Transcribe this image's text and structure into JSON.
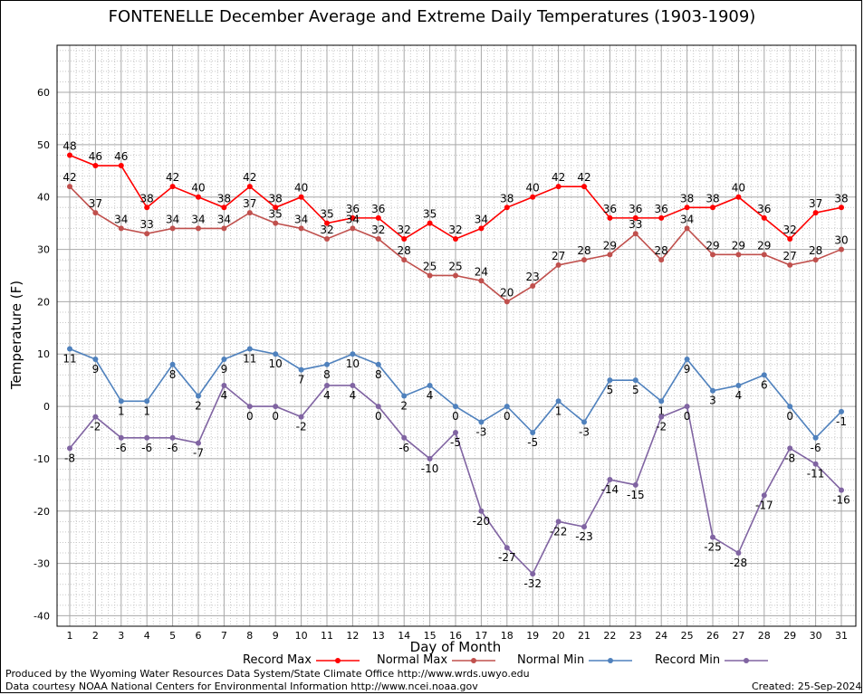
{
  "chart_data": {
    "type": "line",
    "title": "FONTENELLE December Average and Extreme Daily Temperatures (1903-1909)",
    "xlabel": "Day of Month",
    "ylabel": "Temperature (F)",
    "ylim": [
      -42,
      69
    ],
    "yticks": [
      -40,
      -30,
      -20,
      -10,
      0,
      10,
      20,
      30,
      40,
      50,
      60
    ],
    "x": [
      1,
      2,
      3,
      4,
      5,
      6,
      7,
      8,
      9,
      10,
      11,
      12,
      13,
      14,
      15,
      16,
      17,
      18,
      19,
      20,
      21,
      22,
      23,
      24,
      25,
      26,
      27,
      28,
      29,
      30,
      31
    ],
    "grid": true,
    "series": [
      {
        "name": "Record Max",
        "color": "#ff0000",
        "label_pos": "above",
        "values": [
          48,
          46,
          46,
          38,
          42,
          40,
          38,
          42,
          38,
          40,
          35,
          36,
          36,
          32,
          35,
          32,
          34,
          38,
          40,
          42,
          42,
          36,
          36,
          36,
          38,
          38,
          40,
          36,
          32,
          37,
          38
        ]
      },
      {
        "name": "Normal Max",
        "color": "#c0504d",
        "label_pos": "above",
        "values": [
          42,
          37,
          34,
          33,
          34,
          34,
          34,
          37,
          35,
          34,
          32,
          34,
          32,
          28,
          25,
          25,
          24,
          20,
          23,
          27,
          28,
          29,
          33,
          28,
          34,
          29,
          29,
          29,
          27,
          28,
          30
        ]
      },
      {
        "name": "Normal Min",
        "color": "#4f81bd",
        "label_pos": "below",
        "values": [
          11,
          9,
          1,
          1,
          8,
          2,
          9,
          11,
          10,
          7,
          8,
          10,
          8,
          2,
          4,
          0,
          -3,
          0,
          -5,
          1,
          -3,
          5,
          5,
          1,
          9,
          3,
          4,
          6,
          0,
          -6,
          -1
        ]
      },
      {
        "name": "Record Min",
        "color": "#8064a2",
        "label_pos": "below",
        "values": [
          -8,
          -2,
          -6,
          -6,
          -6,
          -7,
          4,
          0,
          0,
          -2,
          4,
          4,
          0,
          -6,
          -10,
          -5,
          -20,
          -27,
          -32,
          -22,
          -23,
          -14,
          -15,
          -2,
          0,
          -25,
          -28,
          -17,
          -8,
          -11,
          -16
        ]
      }
    ]
  },
  "legend": {
    "record_max": "Record Max",
    "normal_max": "Normal Max",
    "normal_min": "Normal Min",
    "record_min": "Record Min"
  },
  "footer": {
    "produced_by": "Produced by the Wyoming Water Resources Data System/State Climate Office http://www.wrds.uwyo.edu",
    "courtesy": "Data courtesy NOAA National Centers for Environmental Information http://www.ncei.noaa.gov",
    "created": "Created: 25-Sep-2024"
  }
}
